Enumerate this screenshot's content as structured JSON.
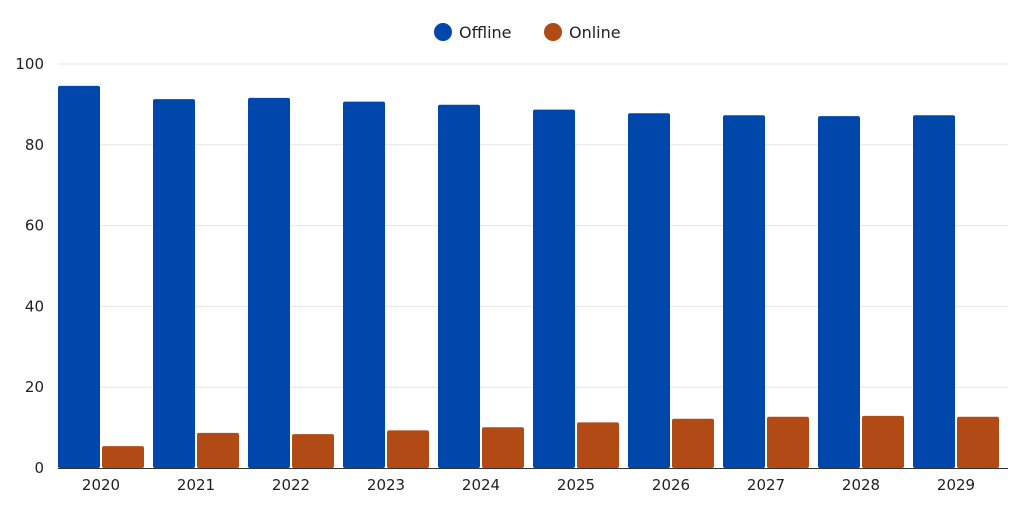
{
  "chart_data": {
    "type": "bar",
    "categories": [
      "2020",
      "2021",
      "2022",
      "2023",
      "2024",
      "2025",
      "2026",
      "2027",
      "2028",
      "2029"
    ],
    "series": [
      {
        "name": "Offline",
        "color": "#0047AB",
        "values": [
          94.6,
          91.3,
          91.6,
          90.7,
          89.9,
          88.7,
          87.8,
          87.3,
          87.1,
          87.3
        ]
      },
      {
        "name": "Online",
        "color": "#B14A14",
        "values": [
          5.4,
          8.7,
          8.4,
          9.3,
          10.1,
          11.3,
          12.2,
          12.7,
          12.9,
          12.7
        ]
      }
    ],
    "title": "",
    "xlabel": "",
    "ylabel": "",
    "ylim": [
      0,
      100
    ],
    "yticks": [
      0,
      20,
      40,
      60,
      80,
      100
    ],
    "grid": true,
    "legend_position": "top-center"
  }
}
